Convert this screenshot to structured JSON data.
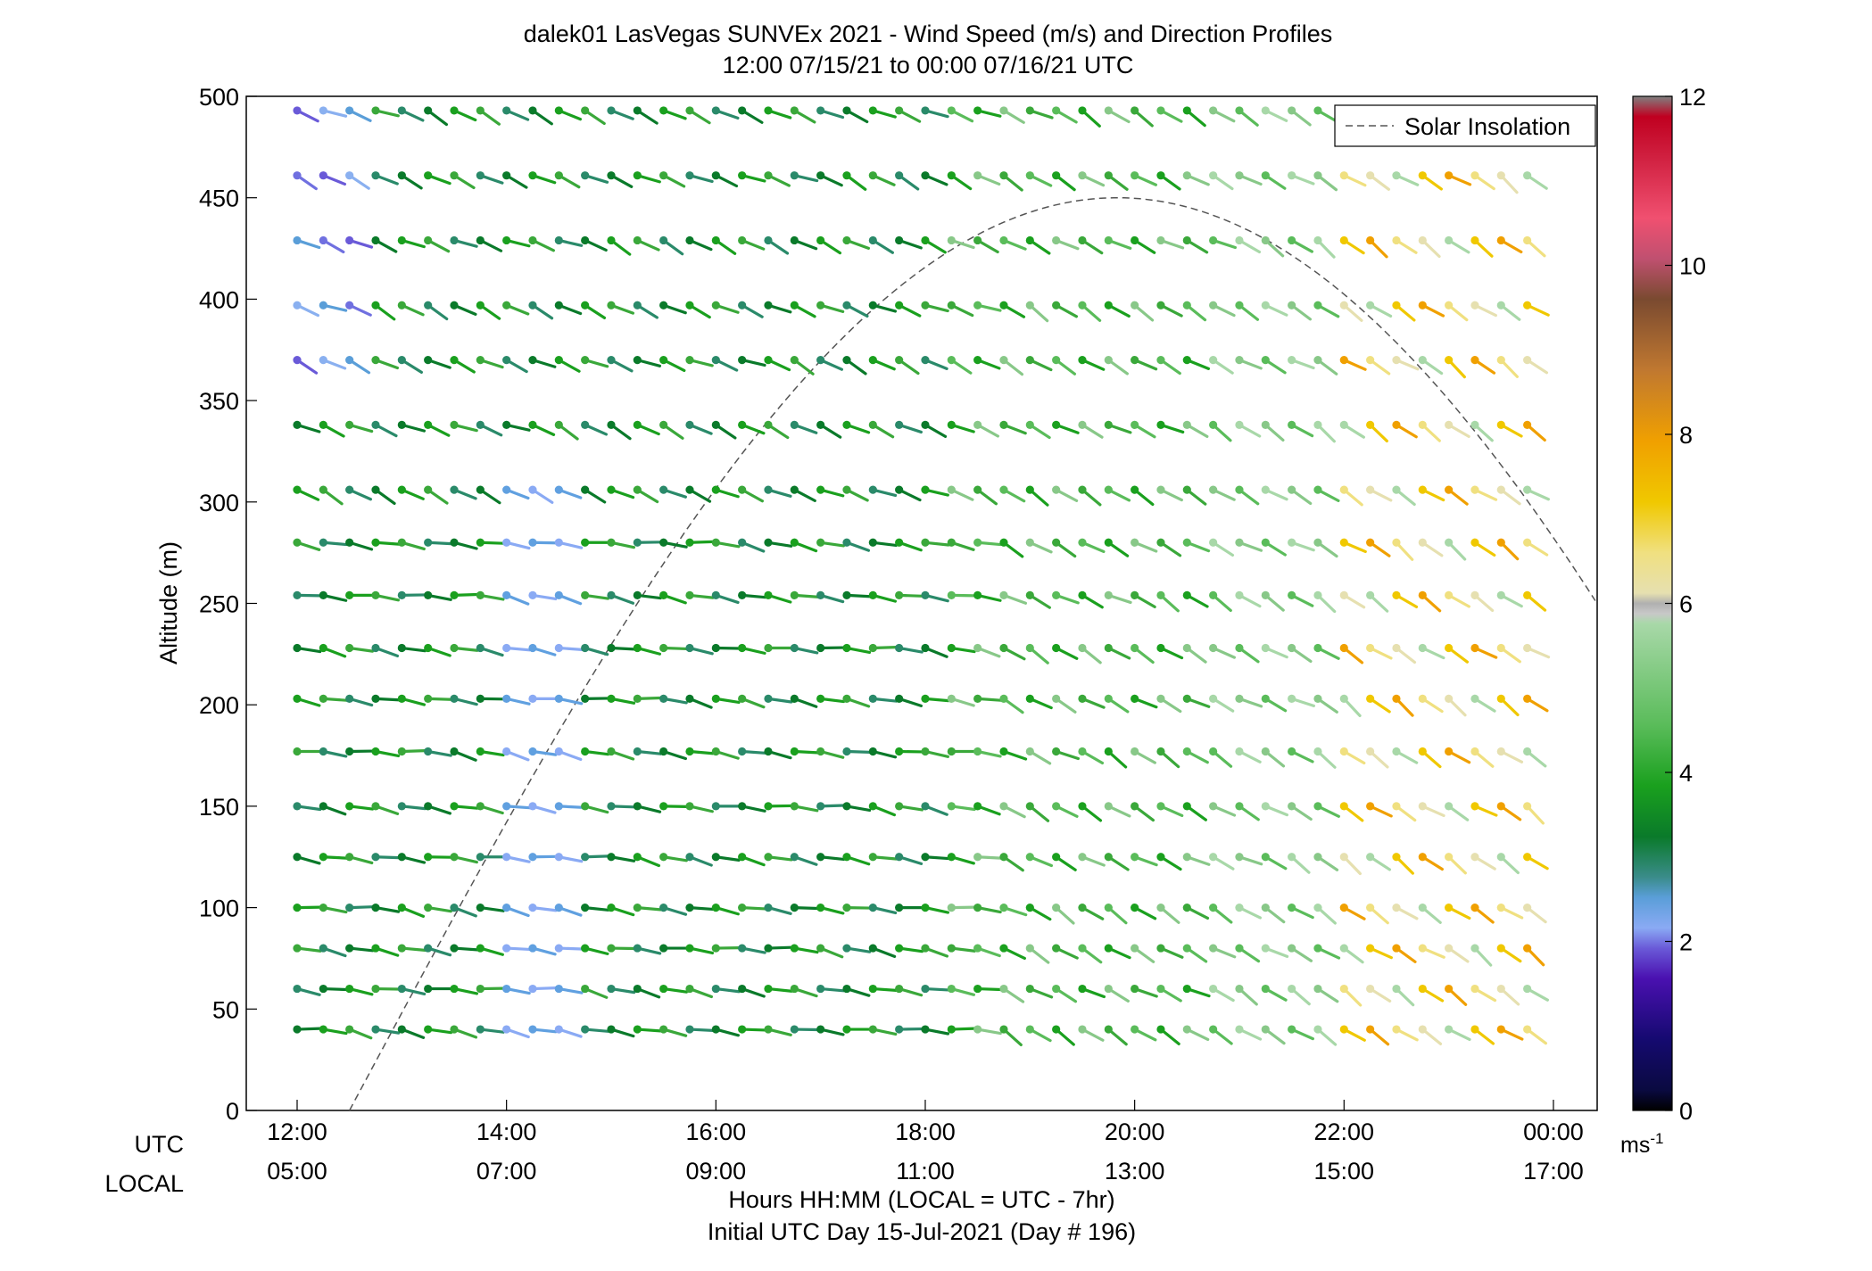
{
  "chart_data": {
    "type": "scatter",
    "title": "dalek01 LasVegas SUNVEx 2021 - Wind Speed (m/s) and Direction Profiles",
    "subtitle": "12:00 07/15/21 to 00:00 07/16/21  UTC",
    "ylabel": "Altitude (m)",
    "xlabel": "Hours HH:MM  (LOCAL = UTC - 7hr)",
    "xlabel2": "Initial UTC Day 15-Jul-2021 (Day # 196)",
    "x_row_label_utc": "UTC",
    "x_row_label_local": "LOCAL",
    "ylim": [
      0,
      500
    ],
    "y_ticks": [
      "0",
      "50",
      "100",
      "150",
      "200",
      "250",
      "300",
      "350",
      "400",
      "450",
      "500"
    ],
    "x_ticks_utc": [
      "12:00",
      "14:00",
      "16:00",
      "18:00",
      "20:00",
      "22:00",
      "00:00"
    ],
    "x_ticks_local": [
      "05:00",
      "07:00",
      "09:00",
      "11:00",
      "13:00",
      "15:00",
      "17:00"
    ],
    "legend": {
      "label": "Solar Insolation",
      "placement": "top-right"
    },
    "colorbar": {
      "unit": "ms",
      "unit_exp": "-1",
      "range": [
        0,
        12
      ],
      "ticks": [
        "0",
        "2",
        "4",
        "6",
        "8",
        "10",
        "12"
      ]
    },
    "altitudes": [
      40,
      60,
      80,
      100,
      125,
      150,
      177,
      203,
      228,
      254,
      280,
      306,
      338,
      370,
      397,
      429,
      461,
      493
    ],
    "profile_interval_min": 15,
    "start_utc": "12:00",
    "end_utc": "00:00",
    "solar_insolation_curve": {
      "rise_utc": "12:30",
      "peak_utc": "19:50",
      "end_utc": "00:30",
      "peak_relative": 0.9
    },
    "notes": [
      "wind barbs at 15-minute intervals and fixed altitude levels; colour encodes wind speed per colorbar",
      "direction varies from westerly (morning) to northwesterly/southerly through the day"
    ]
  }
}
